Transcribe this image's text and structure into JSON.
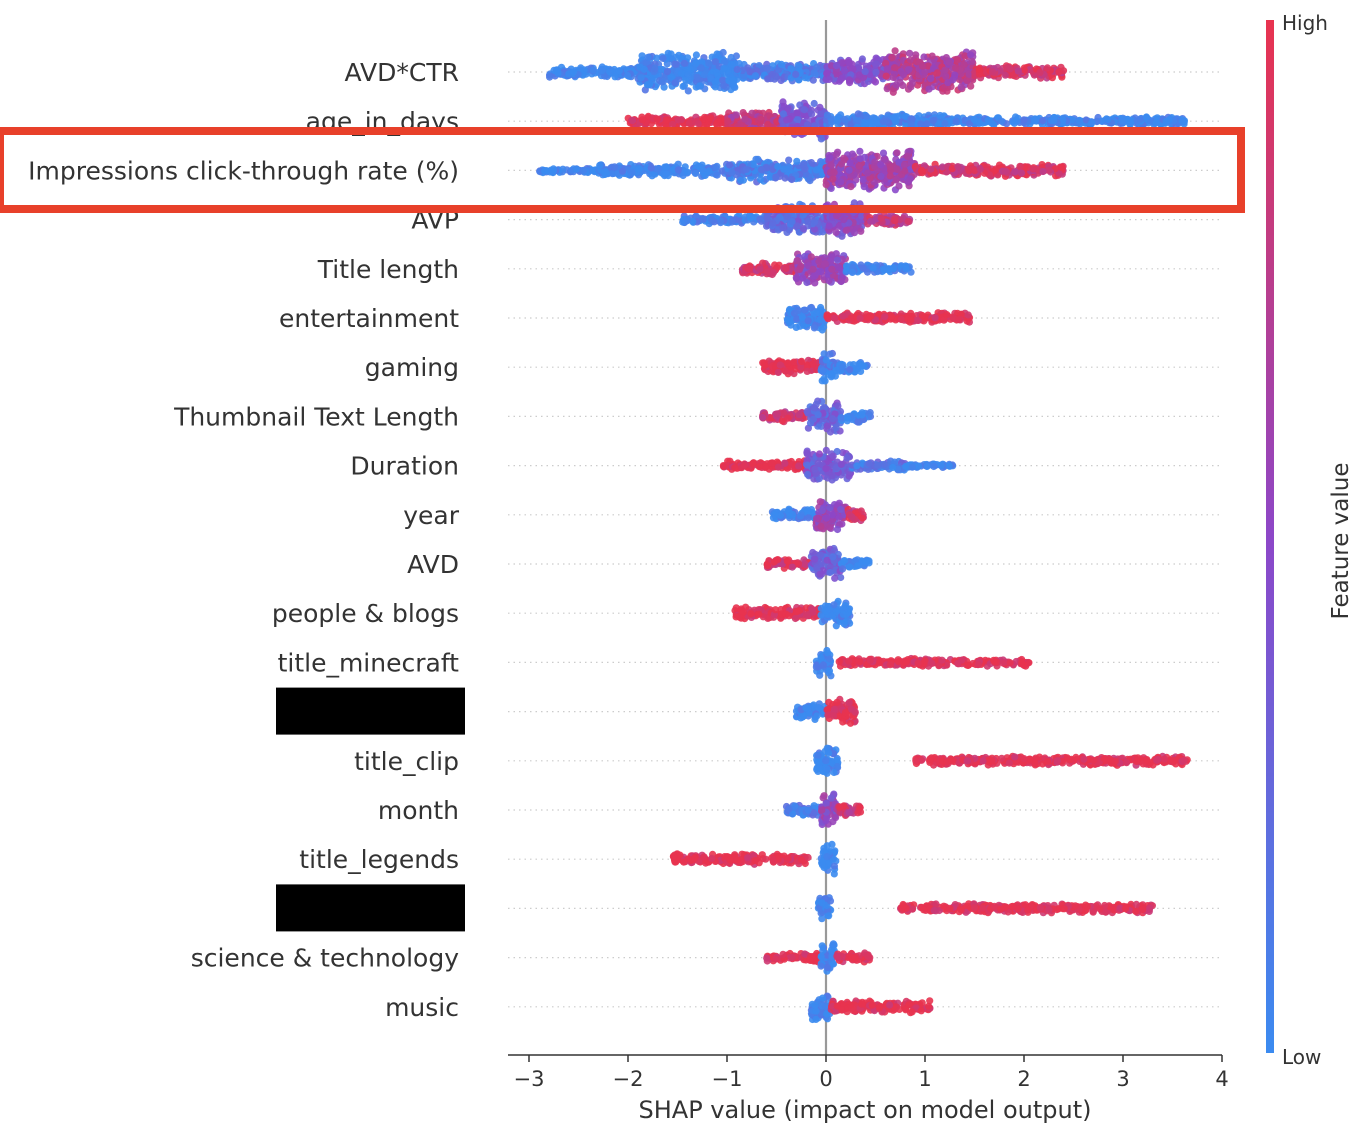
{
  "chart_data": {
    "type": "scatter",
    "subtype": "shap-beeswarm-summary",
    "xlabel": "SHAP value (impact on model output)",
    "xlim": [
      -3.2,
      4
    ],
    "xticks": [
      {
        "value": -3,
        "label": "−3"
      },
      {
        "value": -2,
        "label": "−2"
      },
      {
        "value": -1,
        "label": "−1"
      },
      {
        "value": 0,
        "label": "0"
      },
      {
        "value": 1,
        "label": "1"
      },
      {
        "value": 2,
        "label": "2"
      },
      {
        "value": 3,
        "label": "3"
      },
      {
        "value": 4,
        "label": "4"
      }
    ],
    "grid": false,
    "zero_line": true,
    "colorbar": {
      "title": "Feature value",
      "high_label": "High",
      "low_label": "Low",
      "low_color": "#3b8bf0",
      "high_color": "#e8334f"
    },
    "highlight_box": {
      "feature": "Impressions click-through rate (%)",
      "color": "#e8402a"
    },
    "features": [
      {
        "name": "AVD*CTR",
        "redacted": false,
        "segments": [
          {
            "x0": -2.8,
            "x1": -1.9,
            "w": 0.25,
            "c": 0.0
          },
          {
            "x0": -1.9,
            "x1": -0.9,
            "w": 0.95,
            "c": 0.0
          },
          {
            "x0": -0.9,
            "x1": 0.0,
            "w": 0.45,
            "c": 0.1
          },
          {
            "x0": 0.0,
            "x1": 0.6,
            "w": 0.65,
            "c": 0.45
          },
          {
            "x0": 0.6,
            "x1": 1.5,
            "w": 1.0,
            "c": 0.7
          },
          {
            "x0": 1.5,
            "x1": 2.4,
            "w": 0.3,
            "c": 0.9
          }
        ]
      },
      {
        "name": "age_in_days",
        "redacted": false,
        "segments": [
          {
            "x0": -2.0,
            "x1": -1.0,
            "w": 0.25,
            "c": 1.0
          },
          {
            "x0": -1.0,
            "x1": -0.45,
            "w": 0.45,
            "c": 0.75
          },
          {
            "x0": -0.45,
            "x1": 0.0,
            "w": 0.9,
            "c": 0.35
          },
          {
            "x0": 0.0,
            "x1": 1.2,
            "w": 0.35,
            "c": 0.02
          },
          {
            "x0": 1.2,
            "x1": 3.65,
            "w": 0.2,
            "c": 0.0
          }
        ]
      },
      {
        "name": "Impressions click-through rate (%)",
        "redacted": false,
        "segments": [
          {
            "x0": -2.9,
            "x1": -2.3,
            "w": 0.12,
            "c": 0.0
          },
          {
            "x0": -2.3,
            "x1": -1.0,
            "w": 0.3,
            "c": 0.0
          },
          {
            "x0": -1.0,
            "x1": 0.0,
            "w": 0.55,
            "c": 0.08
          },
          {
            "x0": 0.0,
            "x1": 0.9,
            "w": 0.95,
            "c": 0.6
          },
          {
            "x0": 0.9,
            "x1": 2.4,
            "w": 0.3,
            "c": 0.9
          }
        ]
      },
      {
        "name": "AVP",
        "redacted": false,
        "segments": [
          {
            "x0": -1.45,
            "x1": -0.6,
            "w": 0.2,
            "c": 0.05
          },
          {
            "x0": -0.6,
            "x1": 0.0,
            "w": 0.7,
            "c": 0.25
          },
          {
            "x0": 0.0,
            "x1": 0.4,
            "w": 0.85,
            "c": 0.5
          },
          {
            "x0": 0.4,
            "x1": 0.85,
            "w": 0.3,
            "c": 0.8
          }
        ]
      },
      {
        "name": "Title length",
        "redacted": false,
        "segments": [
          {
            "x0": -0.85,
            "x1": -0.3,
            "w": 0.3,
            "c": 0.9
          },
          {
            "x0": -0.3,
            "x1": 0.2,
            "w": 0.75,
            "c": 0.55
          },
          {
            "x0": 0.2,
            "x1": 0.9,
            "w": 0.2,
            "c": 0.0
          }
        ]
      },
      {
        "name": "entertainment",
        "redacted": false,
        "segments": [
          {
            "x0": -0.4,
            "x1": 0.0,
            "w": 0.6,
            "c": 0.0
          },
          {
            "x0": 0.0,
            "x1": 1.45,
            "w": 0.25,
            "c": 1.0
          }
        ]
      },
      {
        "name": "gaming",
        "redacted": false,
        "segments": [
          {
            "x0": -0.65,
            "x1": -0.05,
            "w": 0.35,
            "c": 1.0
          },
          {
            "x0": -0.05,
            "x1": 0.1,
            "w": 0.7,
            "c": 0.05
          },
          {
            "x0": 0.1,
            "x1": 0.42,
            "w": 0.25,
            "c": 0.0
          }
        ]
      },
      {
        "name": "Thumbnail Text Length",
        "redacted": false,
        "segments": [
          {
            "x0": -0.65,
            "x1": -0.2,
            "w": 0.25,
            "c": 0.85
          },
          {
            "x0": -0.2,
            "x1": 0.15,
            "w": 0.75,
            "c": 0.3
          },
          {
            "x0": 0.15,
            "x1": 0.45,
            "w": 0.3,
            "c": 0.0
          }
        ]
      },
      {
        "name": "Duration",
        "redacted": false,
        "segments": [
          {
            "x0": -1.05,
            "x1": -0.2,
            "w": 0.22,
            "c": 1.0
          },
          {
            "x0": -0.2,
            "x1": 0.25,
            "w": 0.75,
            "c": 0.35
          },
          {
            "x0": 0.25,
            "x1": 0.8,
            "w": 0.25,
            "c": 0.15
          },
          {
            "x0": 0.8,
            "x1": 1.28,
            "w": 0.12,
            "c": 0.0
          }
        ]
      },
      {
        "name": "year",
        "redacted": false,
        "segments": [
          {
            "x0": -0.55,
            "x1": -0.1,
            "w": 0.3,
            "c": 0.0
          },
          {
            "x0": -0.1,
            "x1": 0.2,
            "w": 0.8,
            "c": 0.55
          },
          {
            "x0": 0.2,
            "x1": 0.38,
            "w": 0.3,
            "c": 0.9
          }
        ]
      },
      {
        "name": "AVD",
        "redacted": false,
        "segments": [
          {
            "x0": -0.6,
            "x1": -0.15,
            "w": 0.22,
            "c": 0.9
          },
          {
            "x0": -0.15,
            "x1": 0.15,
            "w": 0.75,
            "c": 0.3
          },
          {
            "x0": 0.15,
            "x1": 0.45,
            "w": 0.25,
            "c": 0.0
          }
        ]
      },
      {
        "name": "people & blogs",
        "redacted": false,
        "segments": [
          {
            "x0": -0.92,
            "x1": -0.05,
            "w": 0.3,
            "c": 1.0
          },
          {
            "x0": -0.05,
            "x1": 0.25,
            "w": 0.6,
            "c": 0.0
          }
        ]
      },
      {
        "name": "title_minecraft",
        "redacted": false,
        "segments": [
          {
            "x0": -0.1,
            "x1": 0.05,
            "w": 0.7,
            "c": 0.0
          },
          {
            "x0": 0.1,
            "x1": 2.05,
            "w": 0.2,
            "c": 1.0
          }
        ]
      },
      {
        "name": "",
        "redacted": true,
        "segments": [
          {
            "x0": -0.3,
            "x1": 0.0,
            "w": 0.4,
            "c": 0.0
          },
          {
            "x0": 0.0,
            "x1": 0.3,
            "w": 0.6,
            "c": 1.0
          }
        ]
      },
      {
        "name": "title_clip",
        "redacted": false,
        "segments": [
          {
            "x0": -0.1,
            "x1": 0.12,
            "w": 0.7,
            "c": 0.0
          },
          {
            "x0": 0.9,
            "x1": 3.65,
            "w": 0.22,
            "c": 1.0
          }
        ]
      },
      {
        "name": "month",
        "redacted": false,
        "segments": [
          {
            "x0": -0.4,
            "x1": -0.05,
            "w": 0.3,
            "c": 0.1
          },
          {
            "x0": -0.05,
            "x1": 0.1,
            "w": 0.75,
            "c": 0.5
          },
          {
            "x0": 0.1,
            "x1": 0.35,
            "w": 0.3,
            "c": 0.85
          }
        ]
      },
      {
        "name": "title_legends",
        "redacted": false,
        "segments": [
          {
            "x0": -1.55,
            "x1": -0.18,
            "w": 0.25,
            "c": 1.0
          },
          {
            "x0": -0.05,
            "x1": 0.1,
            "w": 0.75,
            "c": 0.0
          }
        ]
      },
      {
        "name": "",
        "redacted": true,
        "segments": [
          {
            "x0": -0.08,
            "x1": 0.05,
            "w": 0.7,
            "c": 0.0
          },
          {
            "x0": 0.75,
            "x1": 3.3,
            "w": 0.22,
            "c": 1.0
          }
        ]
      },
      {
        "name": "science & technology",
        "redacted": false,
        "segments": [
          {
            "x0": -0.6,
            "x1": -0.05,
            "w": 0.22,
            "c": 1.0
          },
          {
            "x0": -0.05,
            "x1": 0.1,
            "w": 0.75,
            "c": 0.0
          },
          {
            "x0": 0.1,
            "x1": 0.45,
            "w": 0.22,
            "c": 1.0
          }
        ]
      },
      {
        "name": "music",
        "redacted": false,
        "segments": [
          {
            "x0": -0.15,
            "x1": 0.05,
            "w": 0.7,
            "c": 0.0
          },
          {
            "x0": 0.05,
            "x1": 1.05,
            "w": 0.3,
            "c": 1.0
          }
        ]
      }
    ]
  }
}
